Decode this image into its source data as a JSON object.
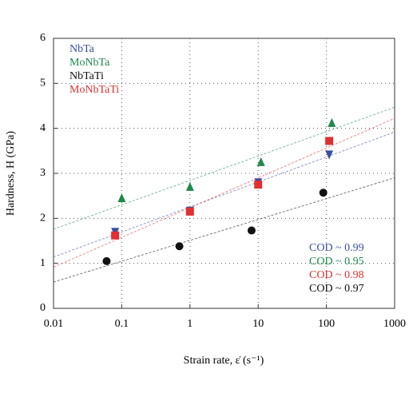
{
  "chart_data": {
    "type": "scatter",
    "x_label": "Strain rate, ε̇ (s⁻¹)",
    "y_label": "Hardness, H (GPa)",
    "xscale": "log",
    "xlim": [
      0.01,
      1000
    ],
    "xticks": [
      0.01,
      0.1,
      1,
      10,
      100,
      1000
    ],
    "ylim": [
      0,
      6
    ],
    "yticks": [
      0,
      1,
      2,
      3,
      4,
      5,
      6
    ],
    "grid": true,
    "fit_lines": true,
    "legend": "upper left",
    "series": [
      {
        "name": "NbTa",
        "color": "#3b4fa0",
        "marker": "triangle-down",
        "x": [
          0.08,
          1,
          10,
          110
        ],
        "values": [
          1.7,
          2.17,
          2.8,
          3.42
        ]
      },
      {
        "name": "MoNbTa",
        "color": "#1e8a4a",
        "marker": "triangle-up",
        "x": [
          0.1,
          1,
          11,
          120
        ],
        "values": [
          2.45,
          2.7,
          3.25,
          4.12
        ]
      },
      {
        "name": "NbTaTi",
        "color": "#111111",
        "marker": "circle",
        "x": [
          0.06,
          0.7,
          8,
          90
        ],
        "values": [
          1.05,
          1.38,
          1.73,
          2.57
        ]
      },
      {
        "name": "MoNbTaTi",
        "color": "#e03030",
        "marker": "square",
        "x": [
          0.08,
          1,
          10,
          110
        ],
        "values": [
          1.62,
          2.15,
          2.75,
          3.72
        ]
      }
    ],
    "annotations": [
      {
        "text": "COD ~ 0.99",
        "color": "#3b4fa0"
      },
      {
        "text": "COD ~ 0.95",
        "color": "#1e8a4a"
      },
      {
        "text": "COD ~ 0.98",
        "color": "#e03030"
      },
      {
        "text": "COD ~ 0.97",
        "color": "#111111"
      }
    ]
  }
}
